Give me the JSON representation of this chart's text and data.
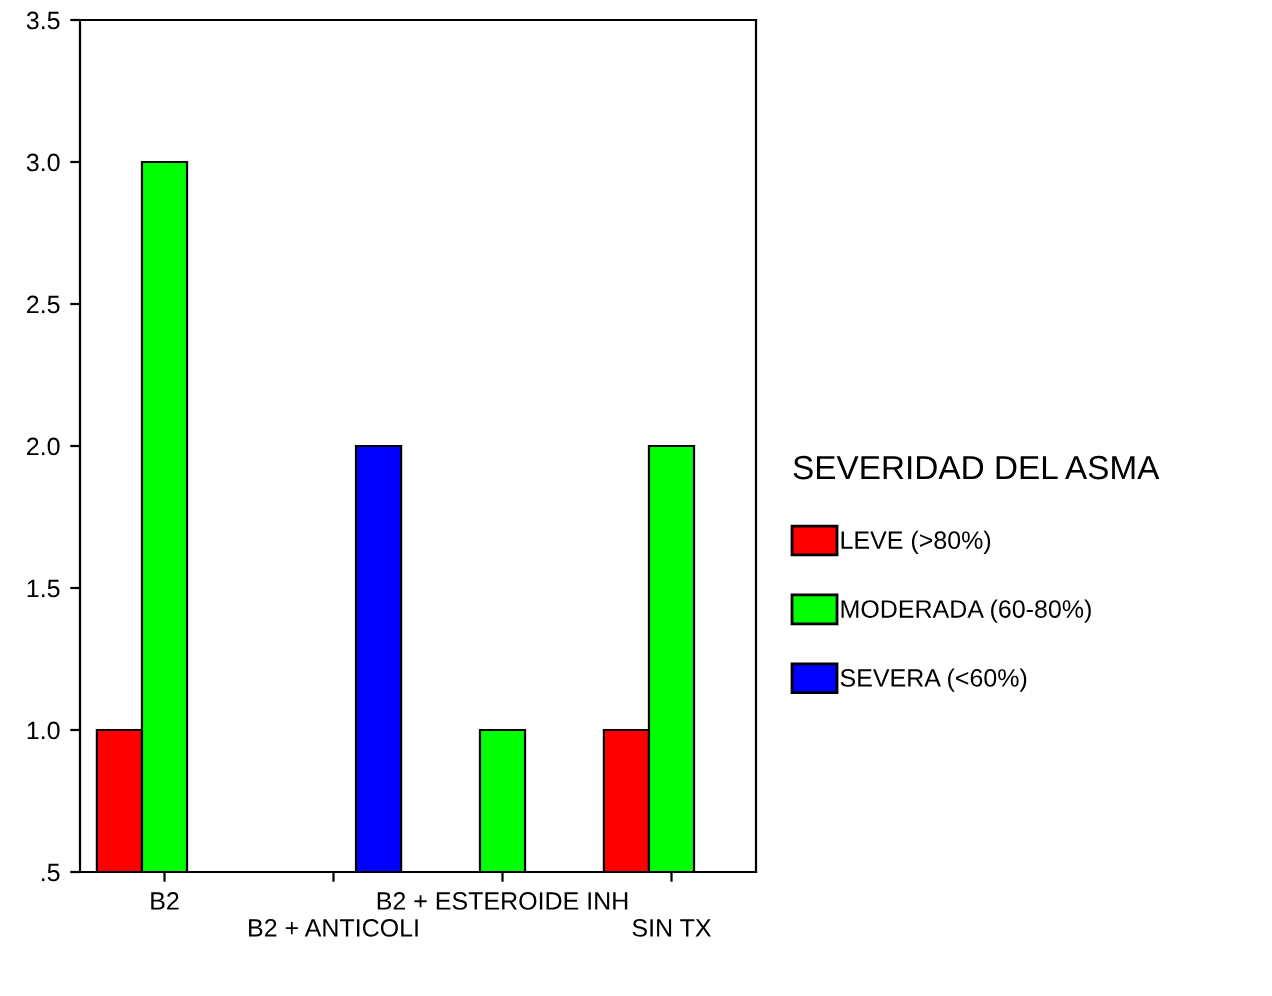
{
  "chart_data": {
    "type": "bar",
    "categories": [
      "B2",
      "B2 + ANTICOLI",
      "B2 + ESTEROIDE INH",
      "SIN TX"
    ],
    "series": [
      {
        "name": "LEVE (>80%)",
        "color": "#ff0000",
        "values": [
          1.0,
          null,
          null,
          1.0
        ]
      },
      {
        "name": "MODERADA (60-80%)",
        "color": "#00ff00",
        "values": [
          3.0,
          null,
          1.0,
          2.0
        ]
      },
      {
        "name": "SEVERA (<60%)",
        "color": "#0000ff",
        "values": [
          null,
          2.0,
          null,
          null
        ]
      }
    ],
    "legend_title": "SEVERIDAD DEL ASMA",
    "legend": "right",
    "grid": false,
    "ylim": [
      0.5,
      3.5
    ],
    "yticks": [
      {
        "value": 0.5,
        "label": ".5"
      },
      {
        "value": 1.0,
        "label": "1.0"
      },
      {
        "value": 1.5,
        "label": "1.5"
      },
      {
        "value": 2.0,
        "label": "2.0"
      },
      {
        "value": 2.5,
        "label": "2.5"
      },
      {
        "value": 3.0,
        "label": "3.0"
      },
      {
        "value": 3.5,
        "label": "3.5"
      }
    ]
  }
}
